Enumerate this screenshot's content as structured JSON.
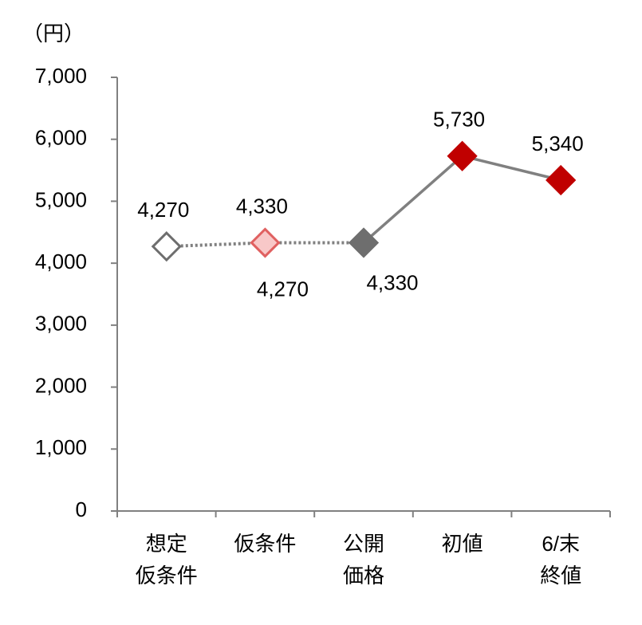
{
  "chart_data": {
    "type": "line",
    "y_label": "（円）",
    "categories": [
      [
        "想定",
        "仮条件"
      ],
      [
        "仮条件"
      ],
      [
        "公開",
        "価格"
      ],
      [
        "初値"
      ],
      [
        "6/末",
        "終値"
      ]
    ],
    "values": [
      4270,
      4330,
      4330,
      5730,
      5340
    ],
    "value_labels": [
      "4,270",
      "4,330",
      "4,330",
      "5,730",
      "5,340"
    ],
    "marker_colors": [
      "#ffffff",
      "#f8c8c8",
      "#6e6e6e",
      "#c00000",
      "#c00000"
    ],
    "marker_edge_colors": [
      "#6e6e6e",
      "#e06060",
      "#6e6e6e",
      "#c00000",
      "#c00000"
    ],
    "line_color": "#808080",
    "line_styles": [
      "dotted",
      "dotted",
      "solid",
      "solid"
    ],
    "range_low": {
      "value": 4270,
      "label": "4,270"
    },
    "ylim": [
      0,
      7000
    ],
    "yticks": [
      {
        "value": 0,
        "label": "0"
      },
      {
        "value": 1000,
        "label": "1,000"
      },
      {
        "value": 2000,
        "label": "2,000"
      },
      {
        "value": 3000,
        "label": "3,000"
      },
      {
        "value": 4000,
        "label": "4,000"
      },
      {
        "value": 5000,
        "label": "5,000"
      },
      {
        "value": 6000,
        "label": "6,000"
      },
      {
        "value": 7000,
        "label": "7,000"
      }
    ],
    "grid": false
  }
}
